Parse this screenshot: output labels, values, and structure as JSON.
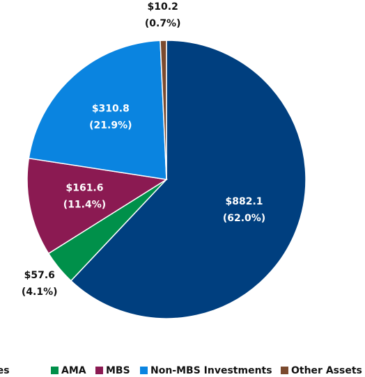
{
  "chart_data": {
    "type": "pie",
    "categories": [
      "Advances",
      "AMA",
      "MBS",
      "Non-MBS Investments",
      "Other Assets"
    ],
    "values": [
      882.1,
      57.6,
      161.6,
      310.8,
      10.2
    ],
    "value_labels": [
      "$882.1",
      "$57.6",
      "$161.6",
      "$310.8",
      "$10.2"
    ],
    "percents": [
      62.0,
      4.1,
      11.4,
      21.9,
      0.7
    ],
    "percent_labels": [
      "(62.0%)",
      "(4.1%)",
      "(11.4%)",
      "(21.9%)",
      "(0.7%)"
    ],
    "colors": [
      "#003f7f",
      "#00904a",
      "#8b1a52",
      "#0a84e0",
      "#7b4a2e"
    ],
    "legend": "bottom"
  }
}
